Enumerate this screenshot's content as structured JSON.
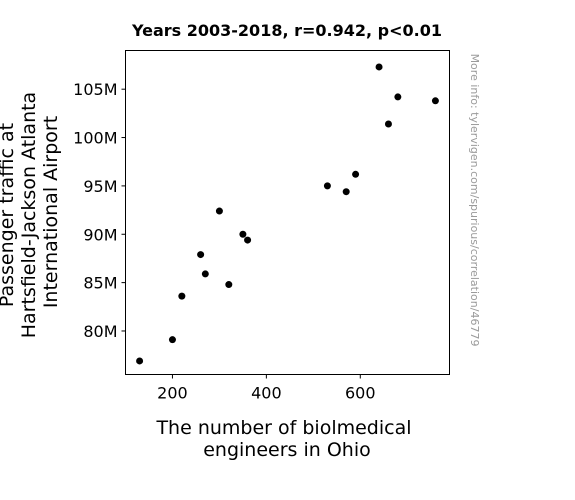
{
  "chart_data": {
    "type": "scatter",
    "title": "Years 2003-2018, r=0.942, p<0.01",
    "xlabel": [
      "The number of biolmedical",
      "engineers in Ohio"
    ],
    "ylabel": [
      "Passenger traffic at",
      "Hartsfield-Jackson Atlanta",
      "International Airport"
    ],
    "xlim": [
      100,
      790
    ],
    "ylim": [
      75500000,
      109000000
    ],
    "xticks": [
      {
        "value": 200,
        "label": "200"
      },
      {
        "value": 400,
        "label": "400"
      },
      {
        "value": 600,
        "label": "600"
      }
    ],
    "yticks": [
      {
        "value": 80000000,
        "label": "80M"
      },
      {
        "value": 85000000,
        "label": "85M"
      },
      {
        "value": 90000000,
        "label": "90M"
      },
      {
        "value": 95000000,
        "label": "95M"
      },
      {
        "value": 100000000,
        "label": "100M"
      },
      {
        "value": 105000000,
        "label": "105M"
      }
    ],
    "grid": false,
    "marker_color": "#000000",
    "points": [
      {
        "x": 130,
        "y": 76900000
      },
      {
        "x": 200,
        "y": 79100000
      },
      {
        "x": 220,
        "y": 83600000
      },
      {
        "x": 260,
        "y": 87900000
      },
      {
        "x": 270,
        "y": 85900000
      },
      {
        "x": 300,
        "y": 92400000
      },
      {
        "x": 320,
        "y": 84800000
      },
      {
        "x": 350,
        "y": 90000000
      },
      {
        "x": 360,
        "y": 89400000
      },
      {
        "x": 530,
        "y": 95000000
      },
      {
        "x": 570,
        "y": 94400000
      },
      {
        "x": 590,
        "y": 96200000
      },
      {
        "x": 640,
        "y": 107300000
      },
      {
        "x": 660,
        "y": 101400000
      },
      {
        "x": 680,
        "y": 104200000
      },
      {
        "x": 760,
        "y": 103800000
      }
    ]
  },
  "watermark": "More info: tylervigen.com/spurious/correlation/46779"
}
